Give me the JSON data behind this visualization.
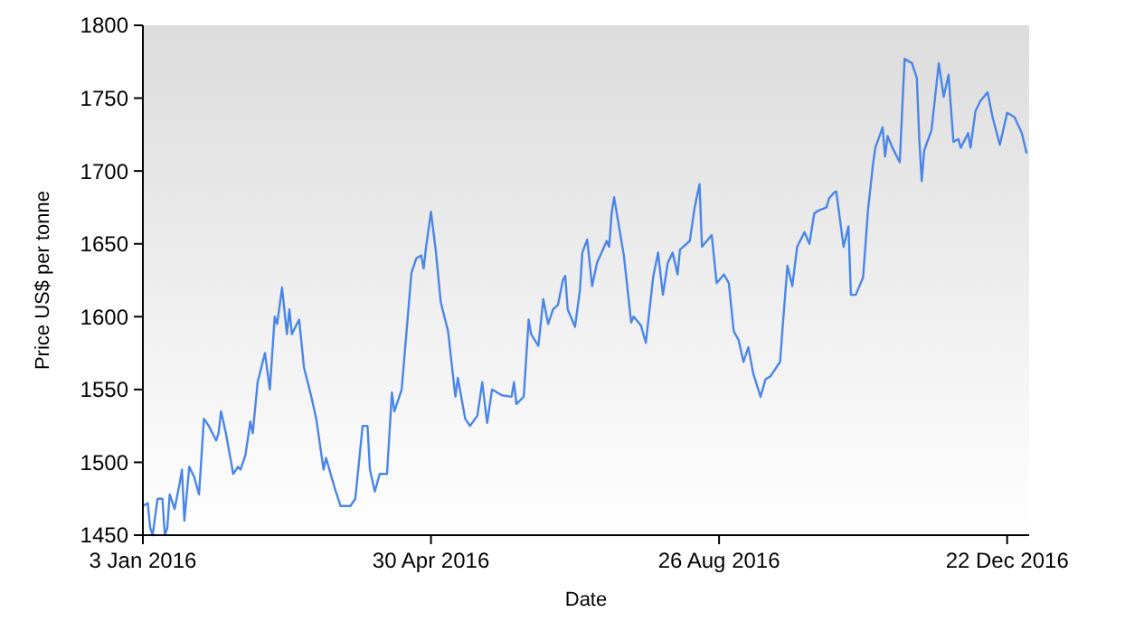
{
  "chart_data": {
    "type": "line",
    "xlabel": "Date",
    "ylabel": "Price US$ per tonne",
    "xlim": [
      "2016-01-03",
      "2016-12-31"
    ],
    "xticks": [
      {
        "value": "2016-01-03",
        "label": "3 Jan 2016"
      },
      {
        "value": "2016-04-30",
        "label": "30 Apr 2016"
      },
      {
        "value": "2016-08-26",
        "label": "26 Aug 2016"
      },
      {
        "value": "2016-12-22",
        "label": "22 Dec 2016"
      }
    ],
    "ylim": [
      1450,
      1800
    ],
    "yticks": [
      1450,
      1500,
      1550,
      1600,
      1650,
      1700,
      1750,
      1800
    ],
    "x": [
      "2016-01-03",
      "2016-01-05",
      "2016-01-06",
      "2016-01-07",
      "2016-01-09",
      "2016-01-11",
      "2016-01-12",
      "2016-01-13",
      "2016-01-14",
      "2016-01-16",
      "2016-01-18",
      "2016-01-19",
      "2016-01-20",
      "2016-01-22",
      "2016-01-24",
      "2016-01-26",
      "2016-01-28",
      "2016-01-30",
      "2016-02-02",
      "2016-02-03",
      "2016-02-04",
      "2016-02-06",
      "2016-02-09",
      "2016-02-11",
      "2016-02-12",
      "2016-02-14",
      "2016-02-16",
      "2016-02-17",
      "2016-02-19",
      "2016-02-22",
      "2016-02-24",
      "2016-02-26",
      "2016-02-27",
      "2016-02-29",
      "2016-03-02",
      "2016-03-03",
      "2016-03-04",
      "2016-03-07",
      "2016-03-09",
      "2016-03-12",
      "2016-03-14",
      "2016-03-17",
      "2016-03-18",
      "2016-03-22",
      "2016-03-24",
      "2016-03-28",
      "2016-03-30",
      "2016-04-02",
      "2016-04-04",
      "2016-04-05",
      "2016-04-07",
      "2016-04-09",
      "2016-04-12",
      "2016-04-14",
      "2016-04-15",
      "2016-04-18",
      "2016-04-22",
      "2016-04-24",
      "2016-04-26",
      "2016-04-27",
      "2016-04-28",
      "2016-04-30",
      "2016-05-02",
      "2016-05-04",
      "2016-05-07",
      "2016-05-10",
      "2016-05-11",
      "2016-05-14",
      "2016-05-16",
      "2016-05-19",
      "2016-05-21",
      "2016-05-23",
      "2016-05-25",
      "2016-05-27",
      "2016-05-29",
      "2016-06-02",
      "2016-06-03",
      "2016-06-04",
      "2016-06-07",
      "2016-06-09",
      "2016-06-10",
      "2016-06-13",
      "2016-06-15",
      "2016-06-17",
      "2016-06-19",
      "2016-06-21",
      "2016-06-23",
      "2016-06-24",
      "2016-06-25",
      "2016-06-28",
      "2016-06-30",
      "2016-07-01",
      "2016-07-03",
      "2016-07-05",
      "2016-07-07",
      "2016-07-11",
      "2016-07-12",
      "2016-07-13",
      "2016-07-14",
      "2016-07-17",
      "2016-07-18",
      "2016-07-21",
      "2016-07-22",
      "2016-07-25",
      "2016-07-27",
      "2016-07-30",
      "2016-08-01",
      "2016-08-03",
      "2016-08-05",
      "2016-08-07",
      "2016-08-09",
      "2016-08-10",
      "2016-08-14",
      "2016-08-16",
      "2016-08-18",
      "2016-08-19",
      "2016-08-23",
      "2016-08-25",
      "2016-08-28",
      "2016-08-30",
      "2016-09-01",
      "2016-09-03",
      "2016-09-05",
      "2016-09-07",
      "2016-09-09",
      "2016-09-12",
      "2016-09-14",
      "2016-09-16",
      "2016-09-20",
      "2016-09-21",
      "2016-09-23",
      "2016-09-25",
      "2016-09-27",
      "2016-09-30",
      "2016-10-02",
      "2016-10-04",
      "2016-10-06",
      "2016-10-09",
      "2016-10-10",
      "2016-10-12",
      "2016-10-13",
      "2016-10-16",
      "2016-10-18",
      "2016-10-19",
      "2016-10-21",
      "2016-10-24",
      "2016-10-26",
      "2016-10-28",
      "2016-10-29",
      "2016-11-01",
      "2016-11-02",
      "2016-11-03",
      "2016-11-05",
      "2016-11-08",
      "2016-11-10",
      "2016-11-13",
      "2016-11-15",
      "2016-11-16",
      "2016-11-17",
      "2016-11-18",
      "2016-11-21",
      "2016-11-24",
      "2016-11-26",
      "2016-11-28",
      "2016-11-30",
      "2016-12-02",
      "2016-12-03",
      "2016-12-06",
      "2016-12-07",
      "2016-12-09",
      "2016-12-11",
      "2016-12-14",
      "2016-12-16",
      "2016-12-19",
      "2016-12-22",
      "2016-12-25",
      "2016-12-28",
      "2016-12-30"
    ],
    "series": [
      {
        "color": "#4a86e8",
        "values": [
          1470,
          1472,
          1455,
          1450,
          1475,
          1475,
          1450,
          1455,
          1478,
          1468,
          1485,
          1495,
          1460,
          1497,
          1490,
          1478,
          1530,
          1525,
          1515,
          1520,
          1535,
          1520,
          1492,
          1497,
          1495,
          1505,
          1528,
          1520,
          1555,
          1575,
          1550,
          1600,
          1595,
          1620,
          1588,
          1605,
          1588,
          1598,
          1565,
          1545,
          1530,
          1495,
          1503,
          1480,
          1470,
          1470,
          1475,
          1525,
          1525,
          1495,
          1480,
          1492,
          1492,
          1548,
          1535,
          1550,
          1630,
          1640,
          1642,
          1633,
          1648,
          1672,
          1645,
          1610,
          1590,
          1545,
          1558,
          1530,
          1525,
          1532,
          1555,
          1527,
          1550,
          1548,
          1546,
          1545,
          1555,
          1540,
          1545,
          1598,
          1588,
          1580,
          1612,
          1595,
          1605,
          1608,
          1625,
          1628,
          1605,
          1593,
          1618,
          1644,
          1653,
          1621,
          1637,
          1652,
          1648,
          1671,
          1682,
          1652,
          1642,
          1596,
          1600,
          1594,
          1582,
          1627,
          1644,
          1615,
          1637,
          1644,
          1629,
          1646,
          1652,
          1675,
          1691,
          1648,
          1656,
          1623,
          1629,
          1623,
          1590,
          1584,
          1569,
          1579,
          1561,
          1545,
          1557,
          1559,
          1569,
          1592,
          1635,
          1621,
          1648,
          1658,
          1650,
          1671,
          1673,
          1675,
          1681,
          1685,
          1686,
          1648,
          1662,
          1615,
          1615,
          1627,
          1673,
          1704,
          1716,
          1730,
          1710,
          1724,
          1716,
          1706,
          1777,
          1774,
          1764,
          1722,
          1693,
          1714,
          1728,
          1774,
          1751,
          1766,
          1720,
          1722,
          1716,
          1726,
          1716,
          1741,
          1748,
          1754,
          1737,
          1718,
          1740,
          1737,
          1726,
          1712
        ]
      }
    ]
  }
}
